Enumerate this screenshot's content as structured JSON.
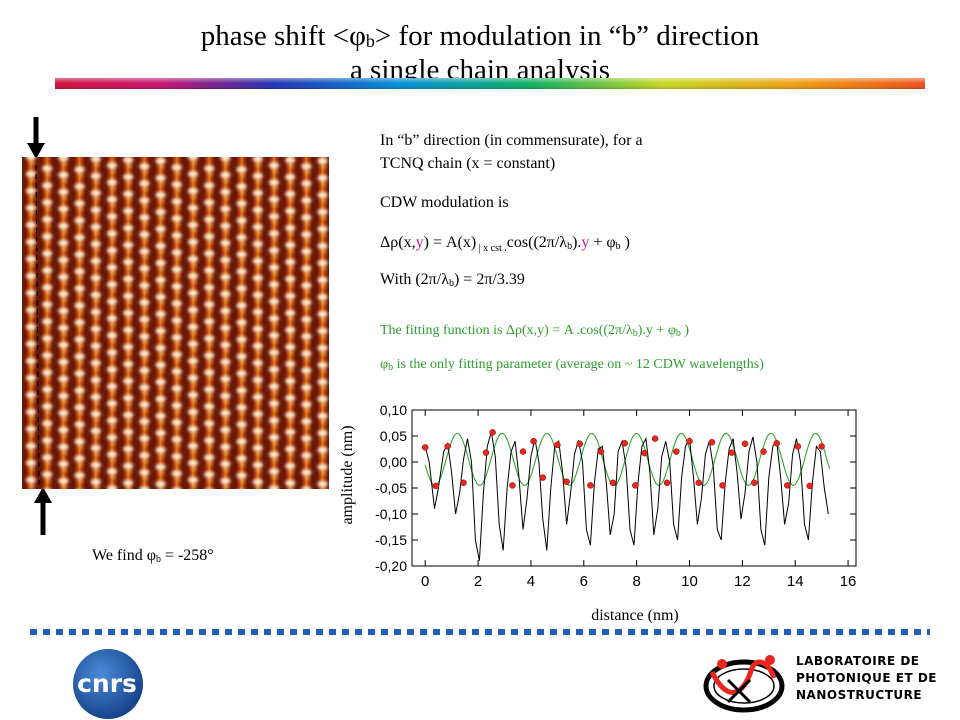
{
  "slide": {
    "title_line1_pre": "phase shift <φ",
    "title_line1_sub": "b",
    "title_line1_post": "> for modulation in “b” direction",
    "title_line2": "a single chain analysis",
    "desc_line1": "In “b” direction (in commensurate), for a",
    "desc_line2": "TCNQ chain (x = constant)",
    "cdw_label": "CDW modulation is",
    "formula": {
      "p1": "Δρ(x,",
      "y1": "y",
      "p2": ")  = A(x)",
      "cst": " | x cst .",
      "p3": "cos((2π/λ",
      "b1": "b",
      "p4": ").",
      "y2": "y",
      "p5": " + φ",
      "b2": "b",
      "p6": " )"
    },
    "with": {
      "p1": "With   (2π/λ",
      "b": "b",
      "p2": ") = 2π/3.39"
    },
    "fit_function": {
      "p1": "The fitting function is Δρ(x,y)  = A .cos((2π/λ",
      "b1": "b",
      "p2": ").y + φ",
      "b2": "b",
      "p3": " )"
    },
    "fit_param": {
      "p1": "φ",
      "b": "b",
      "p2": " is the only fitting parameter (average on ~ 12 CDW wavelengths)"
    },
    "result": {
      "p1": "We find  φ",
      "b": "b",
      "p2": " = -258°"
    },
    "lab_line1": "LABORATOIRE DE",
    "lab_line2": "PHOTONIQUE ET DE",
    "lab_line3": "NANOSTRUCTURE",
    "cnrs_logo_text": "cnrs"
  },
  "colors": {
    "accent_blue": "#1f5fb8",
    "fit_green": "#2ea82e",
    "point_red": "#e8261e",
    "formula_magenta": "#c8148c",
    "cnrs_blue": "#1a56a6",
    "stm_dark": "#6a1806",
    "stm_bright": "#fff4dc"
  },
  "chart_data": {
    "type": "line",
    "xlabel": "distance (nm)",
    "ylabel": "amplitude (nm)",
    "xlim": [
      -0.5,
      16.3
    ],
    "ylim": [
      -0.2,
      0.1
    ],
    "xticks": [
      0,
      2,
      4,
      6,
      8,
      10,
      12,
      14,
      16
    ],
    "yticks": [
      -0.2,
      -0.15,
      -0.1,
      -0.05,
      0.0,
      0.05,
      0.1
    ],
    "ytick_labels": [
      "-0,20",
      "-0,15",
      "-0,10",
      "-0,05",
      "0,00",
      "0,05",
      "0,10"
    ],
    "fit_period": 1.695,
    "fit_amplitude": 0.05,
    "fit_offset": 0.005,
    "fit_phase_deg": -258,
    "fit_range": [
      0.0,
      15.3
    ],
    "series": [
      {
        "style": "black-line",
        "x": [
          0.0,
          0.15,
          0.35,
          0.5,
          0.7,
          0.85,
          1.0,
          1.15,
          1.3,
          1.45,
          1.6,
          1.75,
          1.9,
          2.05,
          2.2,
          2.35,
          2.5,
          2.65,
          2.8,
          2.95,
          3.1,
          3.25,
          3.4,
          3.55,
          3.7,
          3.85,
          4.0,
          4.15,
          4.3,
          4.45,
          4.6,
          4.75,
          4.9,
          5.05,
          5.2,
          5.35,
          5.5,
          5.65,
          5.8,
          5.95,
          6.1,
          6.25,
          6.4,
          6.55,
          6.7,
          6.85,
          7.0,
          7.15,
          7.3,
          7.45,
          7.6,
          7.75,
          7.9,
          8.05,
          8.2,
          8.35,
          8.5,
          8.65,
          8.8,
          8.95,
          9.1,
          9.25,
          9.4,
          9.55,
          9.7,
          9.85,
          10.0,
          10.15,
          10.3,
          10.45,
          10.6,
          10.75,
          10.9,
          11.05,
          11.2,
          11.35,
          11.5,
          11.65,
          11.8,
          11.95,
          12.1,
          12.25,
          12.4,
          12.55,
          12.7,
          12.85,
          13.0,
          13.15,
          13.3,
          13.45,
          13.6,
          13.75,
          13.9,
          14.05,
          14.2,
          14.35,
          14.5,
          14.65,
          14.8,
          14.95,
          15.1,
          15.25
        ],
        "y": [
          0.03,
          0.0,
          -0.09,
          -0.05,
          0.02,
          0.035,
          -0.02,
          -0.1,
          -0.06,
          0.005,
          0.045,
          0.0,
          -0.15,
          -0.19,
          -0.06,
          0.03,
          0.058,
          0.01,
          -0.12,
          -0.17,
          -0.05,
          0.02,
          0.04,
          -0.03,
          -0.13,
          -0.07,
          0.01,
          0.045,
          0.0,
          -0.11,
          -0.17,
          -0.05,
          0.03,
          0.04,
          -0.02,
          -0.12,
          -0.06,
          0.015,
          0.042,
          0.0,
          -0.13,
          -0.16,
          -0.04,
          0.025,
          0.03,
          -0.04,
          -0.14,
          -0.1,
          0.02,
          0.04,
          -0.01,
          -0.13,
          -0.16,
          -0.04,
          0.03,
          0.045,
          -0.02,
          -0.14,
          -0.09,
          0.01,
          0.04,
          0.0,
          -0.12,
          -0.15,
          -0.03,
          0.03,
          0.045,
          -0.03,
          -0.12,
          -0.07,
          0.015,
          0.04,
          -0.01,
          -0.13,
          -0.15,
          -0.04,
          0.025,
          0.045,
          -0.02,
          -0.11,
          -0.06,
          0.02,
          0.048,
          0.0,
          -0.13,
          -0.16,
          -0.03,
          0.03,
          0.04,
          -0.03,
          -0.12,
          -0.08,
          0.015,
          0.045,
          0.0,
          -0.12,
          -0.15,
          -0.04,
          0.03,
          0.02,
          -0.05,
          -0.1
        ]
      },
      {
        "style": "red-points",
        "x": [
          0.0,
          0.4,
          0.85,
          1.45,
          2.3,
          2.55,
          3.3,
          3.7,
          4.1,
          4.45,
          5.0,
          5.35,
          5.85,
          6.25,
          6.65,
          7.1,
          7.55,
          7.95,
          8.3,
          8.7,
          9.15,
          9.5,
          10.0,
          10.35,
          10.85,
          11.25,
          11.6,
          12.1,
          12.45,
          12.8,
          13.3,
          13.7,
          14.1,
          14.55,
          15.0
        ],
        "y": [
          0.028,
          -0.046,
          0.03,
          -0.04,
          0.018,
          0.057,
          -0.045,
          0.02,
          0.04,
          -0.03,
          0.033,
          -0.038,
          0.035,
          -0.045,
          0.02,
          -0.04,
          0.036,
          -0.045,
          0.017,
          0.045,
          -0.04,
          0.02,
          0.04,
          -0.04,
          0.038,
          -0.045,
          0.018,
          0.035,
          -0.04,
          0.02,
          0.036,
          -0.045,
          0.03,
          -0.046,
          0.03
        ]
      }
    ]
  }
}
